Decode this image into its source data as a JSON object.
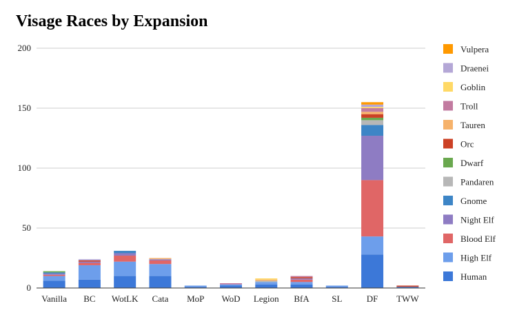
{
  "chart_data": {
    "type": "bar",
    "stacked": true,
    "title": "Visage Races by Expansion",
    "xlabel": "",
    "ylabel": "",
    "ylim": [
      0,
      200
    ],
    "yticks": [
      0,
      50,
      100,
      150,
      200
    ],
    "grid": true,
    "legend_position": "right",
    "categories": [
      "Vanilla",
      "BC",
      "WotLK",
      "Cata",
      "MoP",
      "WoD",
      "Legion",
      "BfA",
      "SL",
      "DF",
      "TWW"
    ],
    "series": [
      {
        "name": "Human",
        "color": "#3c78d8",
        "values": [
          6,
          7,
          10,
          10,
          1,
          2,
          3,
          3,
          1,
          28,
          1
        ]
      },
      {
        "name": "High Elf",
        "color": "#6d9eeb",
        "values": [
          4,
          12,
          12,
          10,
          1,
          1,
          2,
          2,
          1,
          15,
          0
        ]
      },
      {
        "name": "Blood Elf",
        "color": "#e06666",
        "values": [
          1,
          2,
          5,
          3,
          0,
          0,
          0,
          2,
          0,
          47,
          0
        ]
      },
      {
        "name": "Night Elf",
        "color": "#8e7cc3",
        "values": [
          1,
          1,
          2,
          1,
          0,
          0,
          0,
          1,
          0,
          37,
          0
        ]
      },
      {
        "name": "Gnome",
        "color": "#3d85c6",
        "values": [
          1,
          0,
          2,
          0,
          0,
          0,
          0,
          0,
          0,
          9,
          0
        ]
      },
      {
        "name": "Pandaren",
        "color": "#b7b7b7",
        "values": [
          0,
          0,
          0,
          0,
          0,
          0,
          1,
          0,
          0,
          4,
          0
        ]
      },
      {
        "name": "Dwarf",
        "color": "#6aa84f",
        "values": [
          1,
          0,
          0,
          0,
          0,
          0,
          0,
          0,
          0,
          2,
          0
        ]
      },
      {
        "name": "Orc",
        "color": "#cc4125",
        "values": [
          0,
          1,
          0,
          0,
          0,
          0,
          0,
          1,
          0,
          3,
          1
        ]
      },
      {
        "name": "Tauren",
        "color": "#f6b26b",
        "values": [
          0,
          0,
          0,
          1,
          0,
          0,
          1,
          0,
          0,
          2,
          0
        ]
      },
      {
        "name": "Troll",
        "color": "#c27ba0",
        "values": [
          0,
          0,
          0,
          0,
          0,
          1,
          0,
          1,
          0,
          3,
          0
        ]
      },
      {
        "name": "Goblin",
        "color": "#ffd966",
        "values": [
          0,
          0,
          0,
          0,
          0,
          0,
          1,
          0,
          0,
          1,
          0
        ]
      },
      {
        "name": "Draenei",
        "color": "#b4a7d6",
        "values": [
          0,
          1,
          0,
          0,
          0,
          0,
          0,
          0,
          0,
          2,
          0
        ]
      },
      {
        "name": "Vulpera",
        "color": "#ff9900",
        "values": [
          0,
          0,
          0,
          0,
          0,
          0,
          0,
          0,
          0,
          2,
          0
        ]
      }
    ]
  }
}
